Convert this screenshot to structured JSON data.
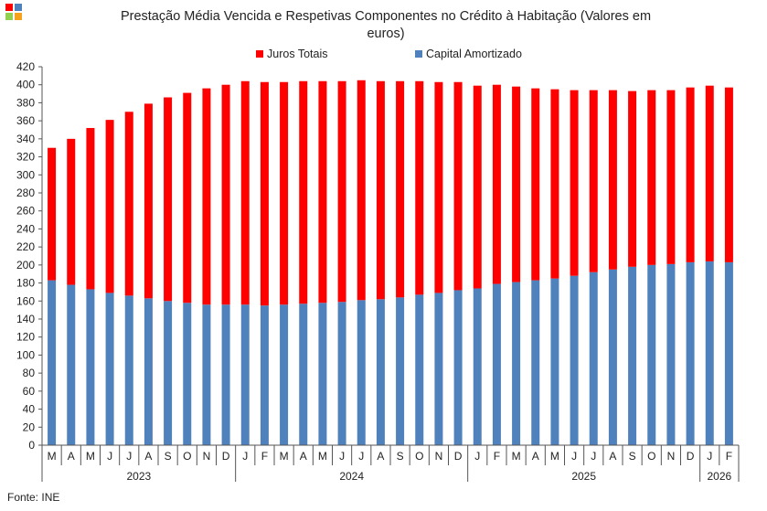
{
  "source": "Fonte: INE",
  "colors": {
    "juros": "#ff0000",
    "capital": "#4f81bd",
    "axis": "#555555",
    "text": "#222222"
  },
  "logo": {
    "colors": [
      "#ff0000",
      "#4f81bd",
      "#92d050",
      "#f7a21b"
    ]
  },
  "chart_data": {
    "type": "bar",
    "stacked": true,
    "title": "Prestação Média Vencida e Respetivas Componentes no Crédito à Habitação (Valores em euros)",
    "title_lines": [
      "Prestação Média Vencida e Respetivas Componentes  no Crédito à Habitação (Valores em",
      "euros)"
    ],
    "xlabel": "",
    "ylabel": "",
    "ylim": [
      0,
      420
    ],
    "ytick_step": 20,
    "grid": false,
    "legend_position": "top",
    "categories": [
      "M",
      "A",
      "M",
      "J",
      "J",
      "A",
      "S",
      "O",
      "N",
      "D",
      "J",
      "F",
      "M",
      "A",
      "M",
      "J",
      "J",
      "A",
      "S",
      "O",
      "N",
      "D",
      "J",
      "F",
      "M",
      "A",
      "M",
      "J",
      "J",
      "A",
      "S",
      "O",
      "N",
      "D",
      "J",
      "F"
    ],
    "year_groups": [
      {
        "label": "2023",
        "count": 10
      },
      {
        "label": "2024",
        "count": 12
      },
      {
        "label": "2025",
        "count": 12
      },
      {
        "label": "2026",
        "count": 2
      }
    ],
    "series": [
      {
        "name": "Capital Amortizado",
        "color": "#4f81bd",
        "values": [
          183,
          178,
          173,
          169,
          166,
          163,
          160,
          158,
          156,
          156,
          156,
          155,
          156,
          157,
          158,
          159,
          161,
          162,
          164,
          167,
          169,
          172,
          174,
          179,
          181,
          183,
          185,
          188,
          192,
          195,
          198,
          200,
          201,
          203,
          204,
          203
        ]
      },
      {
        "name": "Juros Totais",
        "color": "#ff0000",
        "values": [
          147,
          162,
          179,
          192,
          204,
          216,
          226,
          233,
          240,
          244,
          248,
          248,
          247,
          247,
          246,
          245,
          244,
          242,
          240,
          237,
          234,
          231,
          225,
          221,
          217,
          213,
          210,
          206,
          202,
          199,
          195,
          194,
          193,
          194,
          195,
          194
        ]
      }
    ],
    "totals": [
      330,
      340,
      352,
      361,
      370,
      379,
      386,
      391,
      396,
      400,
      404,
      403,
      403,
      404,
      404,
      404,
      405,
      404,
      404,
      404,
      403,
      403,
      399,
      400,
      398,
      396,
      395,
      394,
      394,
      394,
      393,
      394,
      394,
      397,
      399,
      397
    ]
  }
}
